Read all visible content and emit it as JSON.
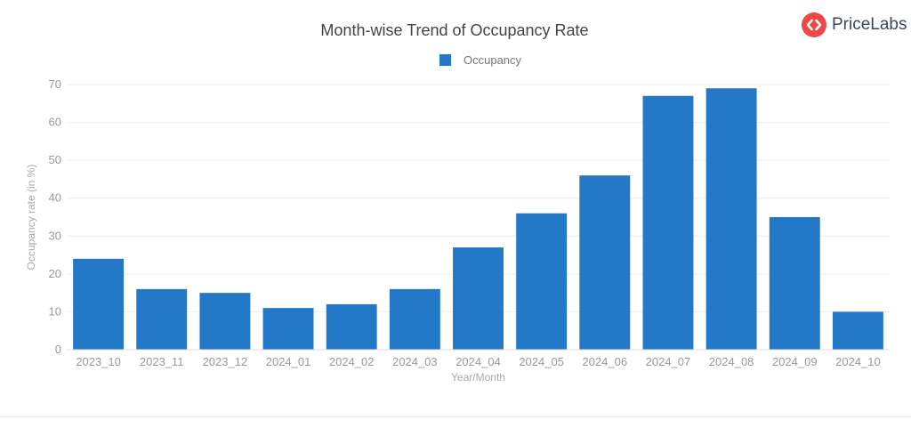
{
  "brand": {
    "name": "PriceLabs",
    "icon": "pricelabs-logo-icon",
    "accent": "#ef4747"
  },
  "chart_data": {
    "type": "bar",
    "title": "Month-wise Trend of Occupancy Rate",
    "xlabel": "Year/Month",
    "ylabel": "Occupancy rate (in %)",
    "ylim": [
      0,
      70
    ],
    "yticks": [
      0,
      10,
      20,
      30,
      40,
      50,
      60,
      70
    ],
    "grid": true,
    "legend_position": "top-center",
    "categories": [
      "2023_10",
      "2023_11",
      "2023_12",
      "2024_01",
      "2024_02",
      "2024_03",
      "2024_04",
      "2024_05",
      "2024_06",
      "2024_07",
      "2024_08",
      "2024_09",
      "2024_10"
    ],
    "series": [
      {
        "name": "Occupancy",
        "color": "#2379c7",
        "values": [
          24,
          16,
          15,
          11,
          12,
          16,
          27,
          36,
          46,
          67,
          69,
          35,
          10
        ]
      }
    ]
  }
}
